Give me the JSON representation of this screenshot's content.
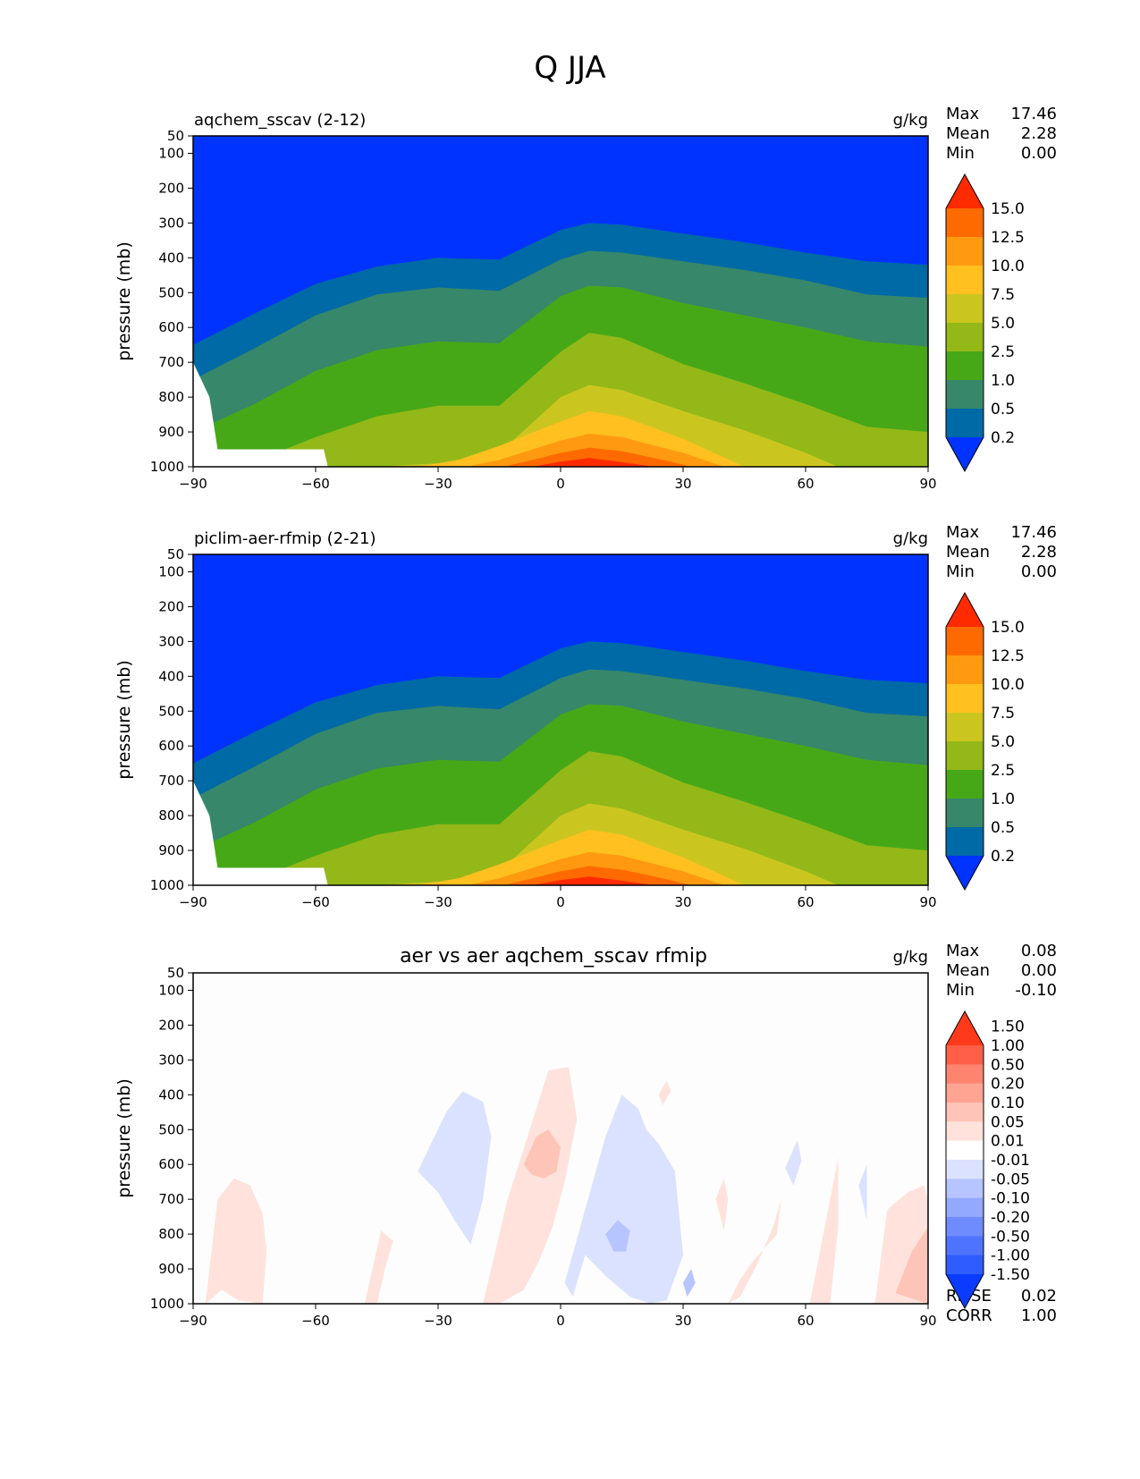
{
  "figure": {
    "title": "Q JJA"
  },
  "chart_data": [
    {
      "type": "contour",
      "title": "aqchem_sscav (2-12)",
      "units": "g/kg",
      "ylabel": "pressure (mb)",
      "xlim": [
        -90,
        90
      ],
      "ylim": [
        1000,
        50
      ],
      "xticks": [
        "−90",
        "−60",
        "−30",
        "0",
        "30",
        "60",
        "90"
      ],
      "yticks": [
        "50",
        "100",
        "200",
        "300",
        "400",
        "500",
        "600",
        "700",
        "800",
        "900",
        "1000"
      ],
      "stats": [
        {
          "label": "Max",
          "value": "17.46"
        },
        {
          "label": "Mean",
          "value": "2.28"
        },
        {
          "label": "Min",
          "value": "0.00"
        }
      ],
      "colorbar": {
        "extend": "both",
        "colors": [
          "#0033ff",
          "#006aa6",
          "#37876a",
          "#46a817",
          "#93b818",
          "#cbc61f",
          "#ffc020",
          "#ff9a10",
          "#ff6a00",
          "#ff2a00"
        ],
        "tick_labels": [
          "0.2",
          "0.5",
          "1.0",
          "2.5",
          "5.0",
          "7.5",
          "10.0",
          "12.5",
          "15.0"
        ]
      },
      "contour_boundaries": [
        {
          "level": 0.2,
          "x": [
            -90,
            -75,
            -60,
            -45,
            -30,
            -15,
            0,
            7,
            15,
            30,
            45,
            60,
            75,
            90
          ],
          "y": [
            650,
            560,
            475,
            425,
            400,
            405,
            320,
            300,
            305,
            330,
            355,
            385,
            410,
            420
          ]
        },
        {
          "level": 0.5,
          "x": [
            -90,
            -75,
            -60,
            -45,
            -30,
            -15,
            0,
            7,
            15,
            30,
            45,
            60,
            75,
            90
          ],
          "y": [
            750,
            660,
            565,
            505,
            485,
            495,
            405,
            380,
            385,
            410,
            435,
            465,
            505,
            515
          ]
        },
        {
          "level": 1.0,
          "x": [
            -90,
            -75,
            -60,
            -45,
            -30,
            -15,
            0,
            7,
            15,
            30,
            45,
            60,
            75,
            90
          ],
          "y": [
            900,
            820,
            725,
            665,
            640,
            645,
            510,
            480,
            485,
            530,
            565,
            600,
            640,
            655
          ]
        },
        {
          "level": 2.5,
          "x": [
            -90,
            -75,
            -60,
            -45,
            -30,
            -15,
            0,
            7,
            15,
            30,
            45,
            60,
            75,
            90
          ],
          "y": [
            1000,
            985,
            915,
            855,
            825,
            825,
            670,
            615,
            630,
            705,
            760,
            820,
            885,
            900
          ]
        },
        {
          "level": 5.0,
          "x": [
            -60,
            -45,
            -30,
            -15,
            0,
            7,
            15,
            30,
            45,
            60,
            68
          ],
          "y": [
            1000,
            1000,
            990,
            960,
            800,
            765,
            780,
            840,
            895,
            960,
            1000
          ]
        },
        {
          "level": 7.5,
          "x": [
            -35,
            -25,
            -15,
            0,
            7,
            15,
            30,
            45
          ],
          "y": [
            1000,
            980,
            940,
            870,
            840,
            855,
            920,
            1000
          ]
        },
        {
          "level": 10.0,
          "x": [
            -23,
            -15,
            0,
            7,
            15,
            30,
            40
          ],
          "y": [
            1000,
            980,
            925,
            905,
            915,
            960,
            1000
          ]
        },
        {
          "level": 12.5,
          "x": [
            -14,
            -5,
            0,
            7,
            15,
            25,
            32
          ],
          "y": [
            1000,
            975,
            960,
            945,
            955,
            980,
            1000
          ]
        },
        {
          "level": 15.0,
          "x": [
            -7,
            0,
            7,
            14,
            23
          ],
          "y": [
            1000,
            985,
            975,
            985,
            1000
          ]
        }
      ],
      "missing_region": {
        "x": [
          -90,
          -86,
          -84,
          -58,
          -57,
          -90
        ],
        "y": [
          700,
          800,
          950,
          950,
          1000,
          1000
        ]
      }
    },
    {
      "type": "contour",
      "title": "piclim-aer-rfmip (2-21)",
      "units": "g/kg",
      "ylabel": "pressure (mb)",
      "xlim": [
        -90,
        90
      ],
      "ylim": [
        1000,
        50
      ],
      "xticks": [
        "−90",
        "−60",
        "−30",
        "0",
        "30",
        "60",
        "90"
      ],
      "yticks": [
        "50",
        "100",
        "200",
        "300",
        "400",
        "500",
        "600",
        "700",
        "800",
        "900",
        "1000"
      ],
      "stats": [
        {
          "label": "Max",
          "value": "17.46"
        },
        {
          "label": "Mean",
          "value": "2.28"
        },
        {
          "label": "Min",
          "value": "0.00"
        }
      ],
      "colorbar": {
        "extend": "both",
        "colors": [
          "#0033ff",
          "#006aa6",
          "#37876a",
          "#46a817",
          "#93b818",
          "#cbc61f",
          "#ffc020",
          "#ff9a10",
          "#ff6a00",
          "#ff2a00"
        ],
        "tick_labels": [
          "0.2",
          "0.5",
          "1.0",
          "2.5",
          "5.0",
          "7.5",
          "10.0",
          "12.5",
          "15.0"
        ]
      },
      "contour_boundaries": [
        {
          "level": 0.2,
          "x": [
            -90,
            -75,
            -60,
            -45,
            -30,
            -15,
            0,
            7,
            15,
            30,
            45,
            60,
            75,
            90
          ],
          "y": [
            650,
            560,
            475,
            425,
            400,
            405,
            320,
            300,
            305,
            330,
            355,
            385,
            410,
            420
          ]
        },
        {
          "level": 0.5,
          "x": [
            -90,
            -75,
            -60,
            -45,
            -30,
            -15,
            0,
            7,
            15,
            30,
            45,
            60,
            75,
            90
          ],
          "y": [
            750,
            660,
            565,
            505,
            485,
            495,
            405,
            380,
            385,
            410,
            435,
            465,
            505,
            515
          ]
        },
        {
          "level": 1.0,
          "x": [
            -90,
            -75,
            -60,
            -45,
            -30,
            -15,
            0,
            7,
            15,
            30,
            45,
            60,
            75,
            90
          ],
          "y": [
            900,
            820,
            725,
            665,
            640,
            645,
            510,
            480,
            485,
            530,
            565,
            600,
            640,
            655
          ]
        },
        {
          "level": 2.5,
          "x": [
            -90,
            -75,
            -60,
            -45,
            -30,
            -15,
            0,
            7,
            15,
            30,
            45,
            60,
            75,
            90
          ],
          "y": [
            1000,
            985,
            915,
            855,
            825,
            825,
            670,
            615,
            630,
            705,
            760,
            820,
            885,
            900
          ]
        },
        {
          "level": 5.0,
          "x": [
            -60,
            -45,
            -30,
            -15,
            0,
            7,
            15,
            30,
            45,
            60,
            68
          ],
          "y": [
            1000,
            1000,
            990,
            960,
            800,
            765,
            780,
            840,
            895,
            960,
            1000
          ]
        },
        {
          "level": 7.5,
          "x": [
            -35,
            -25,
            -15,
            0,
            7,
            15,
            30,
            45
          ],
          "y": [
            1000,
            980,
            940,
            870,
            840,
            855,
            920,
            1000
          ]
        },
        {
          "level": 10.0,
          "x": [
            -23,
            -15,
            0,
            7,
            15,
            30,
            40
          ],
          "y": [
            1000,
            980,
            925,
            905,
            915,
            960,
            1000
          ]
        },
        {
          "level": 12.5,
          "x": [
            -14,
            -5,
            0,
            7,
            15,
            25,
            32
          ],
          "y": [
            1000,
            975,
            960,
            945,
            955,
            980,
            1000
          ]
        },
        {
          "level": 15.0,
          "x": [
            -7,
            0,
            7,
            14,
            23
          ],
          "y": [
            1000,
            985,
            975,
            985,
            1000
          ]
        }
      ],
      "missing_region": {
        "x": [
          -90,
          -86,
          -84,
          -58,
          -57,
          -90
        ],
        "y": [
          700,
          800,
          950,
          950,
          1000,
          1000
        ]
      }
    },
    {
      "type": "contour",
      "title": "aer vs aer aqchem_sscav rfmip",
      "units": "g/kg",
      "ylabel": "pressure (mb)",
      "xlim": [
        -90,
        90
      ],
      "ylim": [
        1000,
        50
      ],
      "xticks": [
        "−90",
        "−60",
        "−30",
        "0",
        "30",
        "60",
        "90"
      ],
      "yticks": [
        "50",
        "100",
        "200",
        "300",
        "400",
        "500",
        "600",
        "700",
        "800",
        "900",
        "1000"
      ],
      "stats": [
        {
          "label": "Max",
          "value": "0.08"
        },
        {
          "label": "Mean",
          "value": "0.00"
        },
        {
          "label": "Min",
          "value": "-0.10"
        }
      ],
      "extra_stats": [
        {
          "label": "RMSE",
          "value": "0.02"
        },
        {
          "label": "CORR",
          "value": "1.00"
        }
      ],
      "colorbar": {
        "extend": "both",
        "colors": [
          "#0a3cff",
          "#2e5cff",
          "#4e74ff",
          "#6f8cff",
          "#93a8ff",
          "#b6c4ff",
          "#dbe2ff",
          "#ffffff",
          "#ffe2dc",
          "#ffc4b8",
          "#ffa493",
          "#ff8470",
          "#ff5f46",
          "#ff3a1a"
        ],
        "tick_labels": [
          "-1.50",
          "-1.00",
          "-0.50",
          "-0.20",
          "-0.10",
          "-0.05",
          "-0.01",
          "0.01",
          "0.05",
          "0.10",
          "0.20",
          "0.50",
          "1.00",
          "1.50"
        ]
      },
      "anomaly_regions": [
        {
          "sign": "positive",
          "level": 0.01,
          "x": [
            -87,
            -84,
            -80,
            -76,
            -73,
            -72,
            -73,
            -79,
            -83,
            -86
          ],
          "y": [
            1000,
            700,
            640,
            660,
            740,
            850,
            1000,
            990,
            960,
            990
          ]
        },
        {
          "sign": "positive",
          "level": 0.01,
          "x": [
            -48,
            -44,
            -41,
            -43,
            -45,
            -47
          ],
          "y": [
            1000,
            790,
            820,
            900,
            1000,
            1000
          ]
        },
        {
          "sign": "positive",
          "level": 0.01,
          "x": [
            -19,
            -13,
            -7,
            -3,
            2,
            4,
            1,
            -2,
            -5,
            -9,
            -15,
            -19
          ],
          "y": [
            1000,
            700,
            480,
            330,
            320,
            470,
            650,
            780,
            870,
            960,
            1000,
            1000
          ]
        },
        {
          "sign": "positive",
          "level": 0.05,
          "x": [
            -9,
            -6,
            -3,
            0,
            -1,
            -4,
            -7,
            -9
          ],
          "y": [
            600,
            520,
            500,
            550,
            620,
            640,
            630,
            600
          ]
        },
        {
          "sign": "positive",
          "level": 0.01,
          "x": [
            24,
            26,
            27,
            25,
            24
          ],
          "y": [
            400,
            360,
            390,
            430,
            400
          ]
        },
        {
          "sign": "positive",
          "level": 0.01,
          "x": [
            38,
            40,
            41,
            40,
            38
          ],
          "y": [
            700,
            640,
            700,
            790,
            700
          ]
        },
        {
          "sign": "positive",
          "level": 0.01,
          "x": [
            41,
            44,
            47,
            53,
            54,
            52,
            48,
            44
          ],
          "y": [
            1000,
            930,
            880,
            800,
            700,
            780,
            890,
            980
          ]
        },
        {
          "sign": "positive",
          "level": 0.01,
          "x": [
            61,
            64,
            67,
            68,
            68,
            66,
            62
          ],
          "y": [
            1000,
            820,
            640,
            580,
            780,
            1000,
            1000
          ]
        },
        {
          "sign": "positive",
          "level": 0.01,
          "x": [
            77,
            80,
            85,
            89,
            90,
            90,
            77
          ],
          "y": [
            1000,
            730,
            680,
            660,
            700,
            1000,
            1000
          ]
        },
        {
          "sign": "positive",
          "level": 0.05,
          "x": [
            82,
            86,
            90,
            90,
            82
          ],
          "y": [
            970,
            850,
            780,
            1000,
            970
          ]
        },
        {
          "sign": "negative",
          "level": -0.01,
          "x": [
            -35,
            -28,
            -24,
            -19,
            -17,
            -19,
            -22,
            -26,
            -30,
            -35
          ],
          "y": [
            620,
            450,
            390,
            420,
            520,
            700,
            830,
            760,
            680,
            620
          ]
        },
        {
          "sign": "negative",
          "level": -0.01,
          "x": [
            1,
            6,
            11,
            15,
            19,
            21,
            24,
            28,
            30,
            26,
            22,
            17,
            11,
            6,
            3,
            1
          ],
          "y": [
            940,
            730,
            520,
            400,
            440,
            500,
            540,
            620,
            860,
            990,
            1000,
            980,
            920,
            860,
            980,
            940
          ]
        },
        {
          "sign": "negative",
          "level": -0.05,
          "x": [
            11,
            14,
            17,
            16,
            13,
            11
          ],
          "y": [
            800,
            760,
            790,
            850,
            850,
            800
          ]
        },
        {
          "sign": "negative",
          "level": -0.05,
          "x": [
            30,
            32,
            33,
            31,
            30
          ],
          "y": [
            940,
            900,
            940,
            980,
            940
          ]
        },
        {
          "sign": "negative",
          "level": -0.01,
          "x": [
            55,
            58,
            59,
            57,
            55
          ],
          "y": [
            610,
            530,
            590,
            660,
            610
          ]
        },
        {
          "sign": "negative",
          "level": -0.01,
          "x": [
            73,
            75,
            75,
            73
          ],
          "y": [
            660,
            600,
            760,
            660
          ]
        }
      ]
    }
  ]
}
